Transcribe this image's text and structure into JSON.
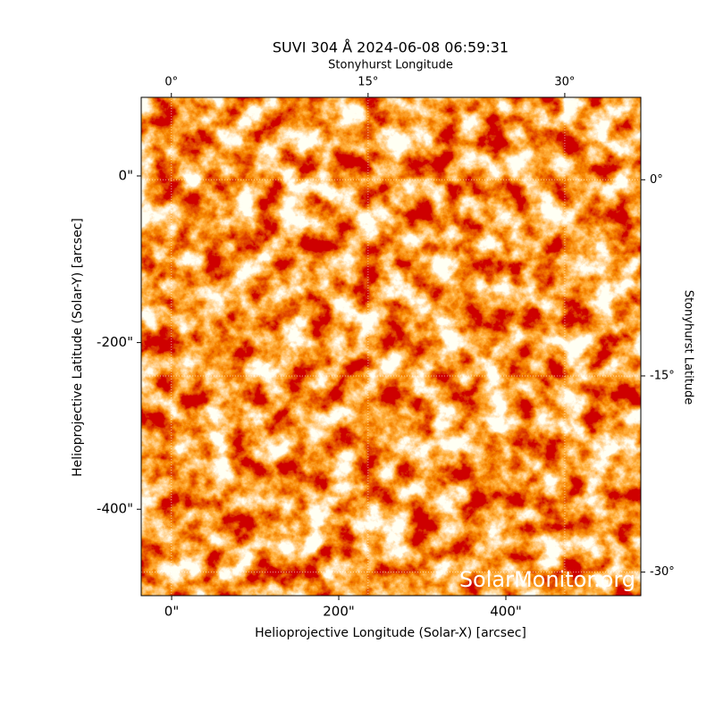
{
  "chart_data": {
    "type": "image",
    "title": "SUVI 304 Å 2024-06-08 06:59:31",
    "xlabel": "Helioprojective Longitude (Solar-X) [arcsec]",
    "ylabel": "Helioprojective Latitude (Solar-Y) [arcsec]",
    "xlim": [
      -36.4,
      561.5
    ],
    "ylim": [
      -503.7,
      94.3
    ],
    "xticks": [
      {
        "value": 0,
        "label": "0\""
      },
      {
        "value": 200,
        "label": "200\""
      },
      {
        "value": 400,
        "label": "400\""
      }
    ],
    "yticks": [
      {
        "value": 0,
        "label": "0\""
      },
      {
        "value": -200,
        "label": "-200\""
      },
      {
        "value": -400,
        "label": "-400\""
      }
    ],
    "x2label": "Stonyhurst Longitude",
    "x2lim": [
      -2.3,
      35.8
    ],
    "x2ticks": [
      {
        "value": 0,
        "label": "0°"
      },
      {
        "value": 15,
        "label": "15°"
      },
      {
        "value": 30,
        "label": "30°"
      }
    ],
    "y2label": "Stonyhurst Latitude",
    "y2lim": [
      -31.8,
      6.3
    ],
    "y2ticks": [
      {
        "value": 0,
        "label": "0°"
      },
      {
        "value": -15,
        "label": "-15°"
      },
      {
        "value": -30,
        "label": "-30°"
      }
    ],
    "grid": true,
    "annotation": "SolarMonitor.org"
  }
}
